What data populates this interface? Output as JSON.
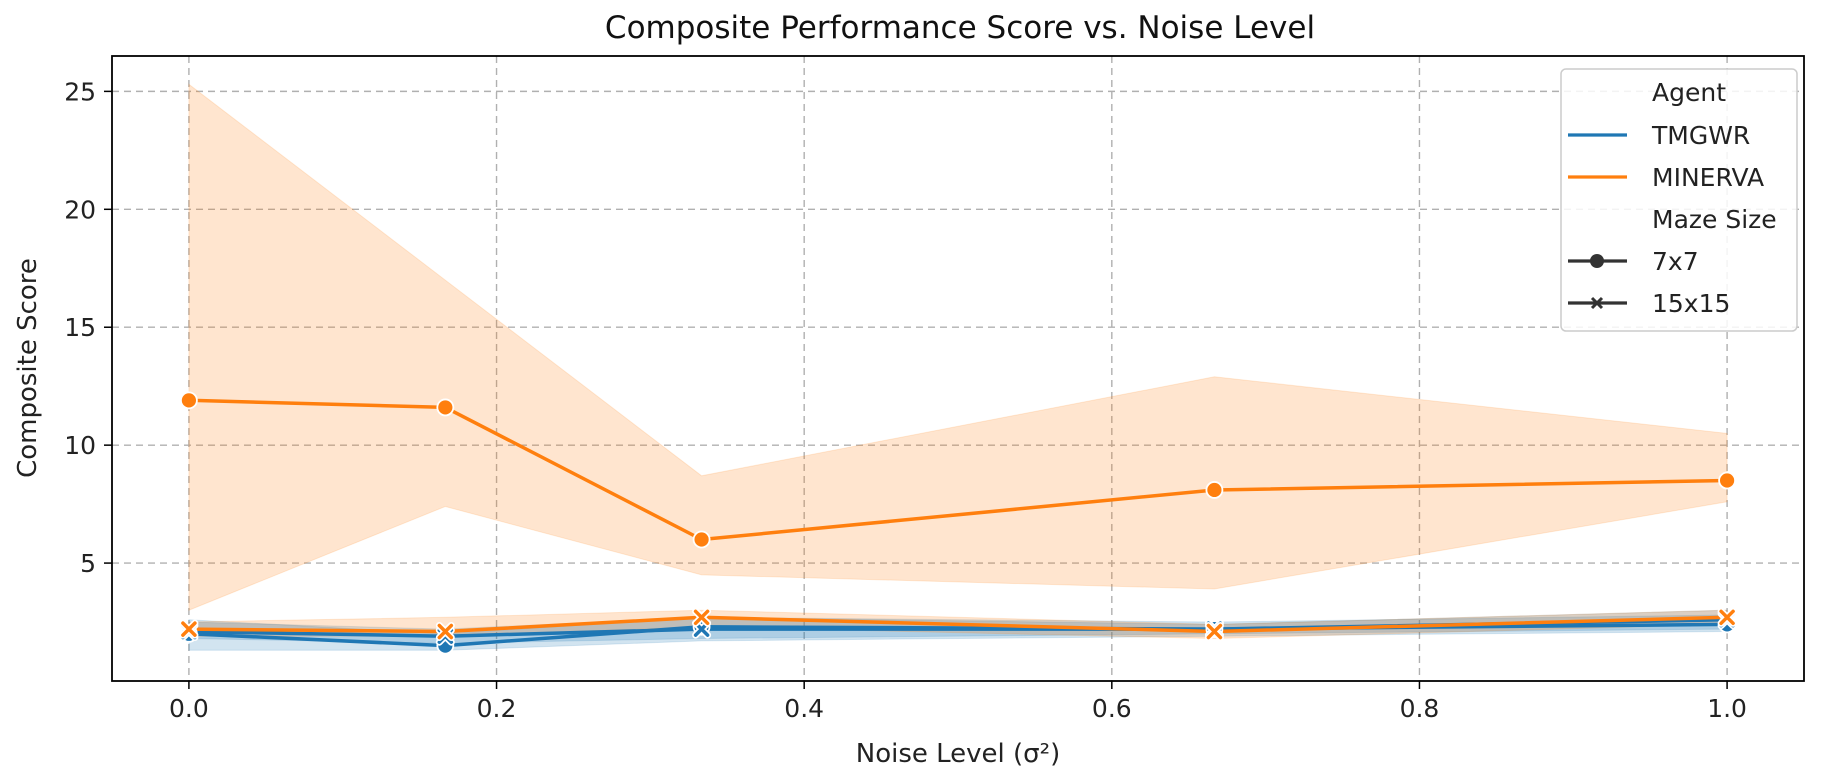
{
  "chart_data": {
    "type": "line",
    "title": "Composite Performance Score vs. Noise Level",
    "xlabel": "Noise Level (σ²)",
    "ylabel": "Composite Score",
    "xlim": [
      -0.05,
      1.05
    ],
    "ylim": [
      0,
      26.5
    ],
    "xticks": [
      0.0,
      0.2,
      0.4,
      0.6,
      0.8,
      1.0
    ],
    "xtick_labels": [
      "0.0",
      "0.2",
      "0.4",
      "0.6",
      "0.8",
      "1.0"
    ],
    "yticks": [
      5,
      10,
      15,
      20,
      25
    ],
    "ytick_labels": [
      "5",
      "10",
      "15",
      "20",
      "25"
    ],
    "grid": true,
    "legend": {
      "placement": "top-right",
      "hue_title": "Agent",
      "style_title": "Maze Size",
      "agents": [
        {
          "name": "TMGWR",
          "color": "#1f77b4"
        },
        {
          "name": "MINERVA",
          "color": "#ff7f0e"
        }
      ],
      "sizes": [
        {
          "name": "7x7",
          "marker": "circle"
        },
        {
          "name": "15x15",
          "marker": "x"
        }
      ]
    },
    "x": [
      0.0,
      0.1667,
      0.3333,
      0.6667,
      1.0
    ],
    "series": [
      {
        "agent": "TMGWR",
        "size": "7x7",
        "marker": "circle",
        "color": "#1f77b4",
        "values": [
          2.0,
          1.5,
          2.3,
          2.2,
          2.4
        ],
        "lower": [
          1.3,
          1.3,
          1.7,
          1.9,
          2.1
        ],
        "upper": [
          2.6,
          2.0,
          2.7,
          2.5,
          2.8
        ]
      },
      {
        "agent": "TMGWR",
        "size": "15x15",
        "marker": "x",
        "color": "#1f77b4",
        "values": [
          2.1,
          1.9,
          2.2,
          2.2,
          2.6
        ],
        "lower": [
          1.8,
          1.6,
          1.8,
          2.0,
          2.2
        ],
        "upper": [
          2.5,
          2.2,
          2.7,
          2.4,
          3.0
        ]
      },
      {
        "agent": "MINERVA",
        "size": "7x7",
        "marker": "circle",
        "color": "#ff7f0e",
        "values": [
          11.9,
          11.6,
          6.0,
          8.1,
          8.5
        ],
        "lower": [
          3.0,
          7.4,
          4.5,
          3.9,
          7.6
        ],
        "upper": [
          25.3,
          17.0,
          8.7,
          12.9,
          10.5
        ]
      },
      {
        "agent": "MINERVA",
        "size": "15x15",
        "marker": "x",
        "color": "#ff7f0e",
        "values": [
          2.2,
          2.1,
          2.7,
          2.1,
          2.7
        ],
        "lower": [
          1.9,
          1.9,
          2.3,
          1.8,
          2.4
        ],
        "upper": [
          2.5,
          2.7,
          3.0,
          2.4,
          3.0
        ]
      }
    ]
  }
}
